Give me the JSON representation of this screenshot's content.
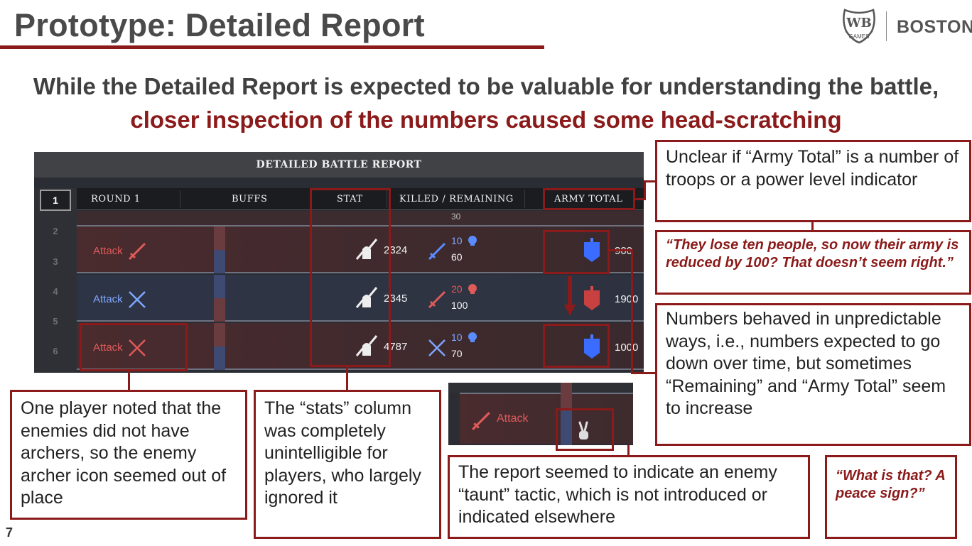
{
  "slide": {
    "title": "Prototype: Detailed Report",
    "brand": "BOSTON",
    "logo_text": "WB GAMES",
    "headline_part1": "While the Detailed Report is expected to be valuable for understanding the battle, ",
    "headline_highlight": "closer inspection of the numbers caused some head-scratching",
    "page_number": "7",
    "accent_color": "#8b1a1a"
  },
  "report": {
    "header": "DETAILED BATTLE REPORT",
    "columns": [
      "Round 1",
      "Buffs",
      "Stat",
      "Killed / Remaining",
      "Army Total"
    ],
    "rounds": [
      "1",
      "2",
      "3",
      "4",
      "5",
      "6"
    ],
    "rows": [
      {
        "side": "red",
        "action": "Attack",
        "stat": "2324",
        "killed": "10",
        "remaining": "60",
        "killed_color": "blue",
        "army_total": "900",
        "army_color": "blue"
      },
      {
        "side": "blue",
        "action": "Attack",
        "stat": "2345",
        "killed": "20",
        "remaining": "100",
        "killed_color": "red",
        "army_total": "1900",
        "army_color": "red"
      },
      {
        "side": "red",
        "action": "Attack",
        "stat": "4787",
        "killed": "10",
        "remaining": "70",
        "killed_color": "blue",
        "army_total": "1000",
        "army_color": "blue"
      }
    ],
    "partial_top": "30"
  },
  "mini_screenshot": {
    "action": "Attack"
  },
  "notes": {
    "army_total_note": "Unclear if “Army Total” is a number of troops or a power level indicator",
    "army_quote": "“They lose ten people, so now their army is reduced by 100? That doesn’t seem right.”",
    "numbers_note": "Numbers behaved in unpredictable ways, i.e., numbers expected to go down over time, but sometimes “Remaining” and “Army Total” seem to increase",
    "archer_note": "One player noted that the enemies did not have archers, so the enemy archer icon seemed out of place",
    "stats_note": "The “stats” column was completely unintelligible for players, who largely ignored it",
    "taunt_note": "The report seemed to indicate an enemy “taunt” tactic, which is not introduced or indicated elsewhere",
    "taunt_quote": "“What is that? A peace sign?”"
  }
}
